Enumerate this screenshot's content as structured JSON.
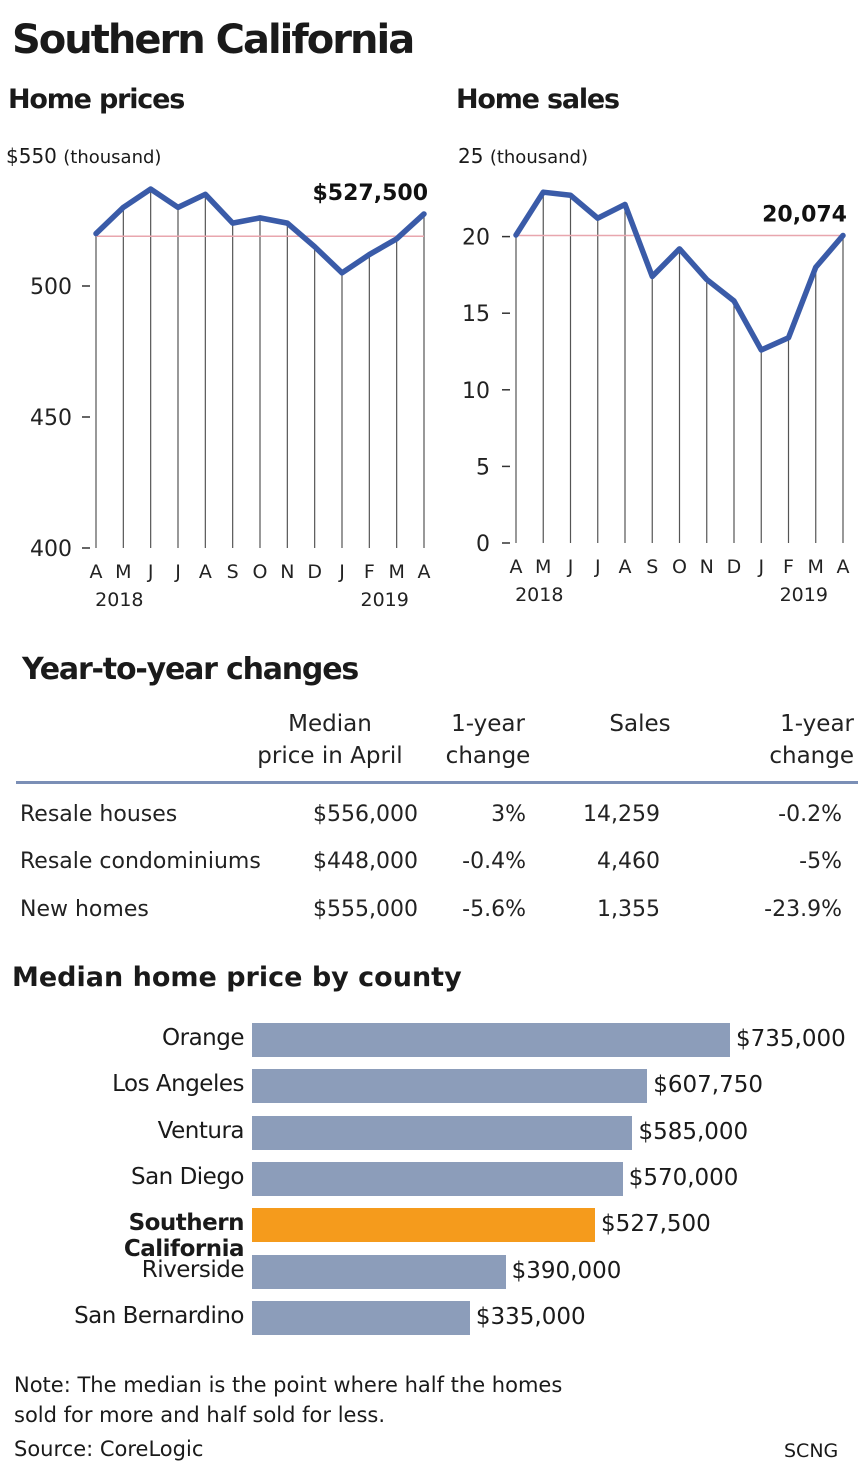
{
  "title": "Southern California",
  "prices_chart": {
    "subtitle": "Home prices",
    "top_label": "$550",
    "unit": "(thousand)",
    "callout": "$527,500"
  },
  "sales_chart": {
    "subtitle": "Home sales",
    "top_label": "25",
    "unit": "(thousand)",
    "callout": "20,074"
  },
  "chart_data": [
    {
      "type": "line",
      "title": "Home prices",
      "ylabel": "$550 (thousand)",
      "x": [
        "A",
        "M",
        "J",
        "J",
        "A",
        "S",
        "O",
        "N",
        "D",
        "J",
        "F",
        "M",
        "A"
      ],
      "year_labels": [
        "2018",
        "2019"
      ],
      "ylim": [
        400,
        550
      ],
      "yticks": [
        "400",
        "450",
        "500",
        "$550"
      ],
      "series": [
        {
          "values": [
            520,
            530,
            537,
            530,
            535,
            524,
            526,
            524,
            515,
            505,
            512,
            518,
            527.5
          ]
        }
      ],
      "reference_value": 519,
      "annotation": "$527,500",
      "colors": {
        "line": "#3a5ba8",
        "reference": "#e8a6ae"
      }
    },
    {
      "type": "line",
      "title": "Home sales",
      "ylabel": "25 (thousand)",
      "x": [
        "A",
        "M",
        "J",
        "J",
        "A",
        "S",
        "O",
        "N",
        "D",
        "J",
        "F",
        "M",
        "A"
      ],
      "year_labels": [
        "2018",
        "2019"
      ],
      "ylim": [
        0,
        25
      ],
      "yticks": [
        "0",
        "5",
        "10",
        "15",
        "20",
        "25"
      ],
      "series": [
        {
          "values": [
            20.1,
            22.9,
            22.7,
            21.2,
            22.1,
            17.4,
            19.2,
            17.2,
            15.8,
            12.6,
            13.4,
            18.0,
            20.074
          ]
        }
      ],
      "reference_value": 20.074,
      "annotation": "20,074",
      "colors": {
        "line": "#3a5ba8",
        "reference": "#e8a6ae"
      }
    },
    {
      "type": "bar",
      "title": "Median home price by county",
      "categories": [
        "Orange",
        "Los Angeles",
        "Ventura",
        "San Diego",
        "Southern California",
        "Riverside",
        "San Bernardino"
      ],
      "values": [
        735000,
        607750,
        585000,
        570000,
        527500,
        390000,
        335000
      ],
      "value_labels": [
        "$735,000",
        "$607,750",
        "$585,000",
        "$570,000",
        "$527,500",
        "$390,000",
        "$335,000"
      ],
      "highlight": "Southern California",
      "colors": {
        "bar": "#8c9dba",
        "highlight": "#f59b1c"
      }
    }
  ],
  "table": {
    "title": "Year-to-year changes",
    "headers": {
      "median_1": "Median",
      "median_2": "price in April",
      "change_1a": "1-year",
      "change_1b": "change",
      "sales": "Sales",
      "change_2a": "1-year",
      "change_2b": "change"
    },
    "rows": [
      {
        "label": "Resale houses",
        "price": "$556,000",
        "price_change": "3%",
        "sales": "14,259",
        "sales_change": "-0.2%"
      },
      {
        "label": "Resale condominiums",
        "price": "$448,000",
        "price_change": "-0.4%",
        "sales": "4,460",
        "sales_change": "-5%"
      },
      {
        "label": "New homes",
        "price": "$555,000",
        "price_change": "-5.6%",
        "sales": "1,355",
        "sales_change": "-23.9%"
      }
    ]
  },
  "footer": {
    "note_1": "Note: The median is the point where half the homes",
    "note_2": "sold for more and half sold for less.",
    "source": "Source: CoreLogic",
    "credit": "SCNG"
  }
}
